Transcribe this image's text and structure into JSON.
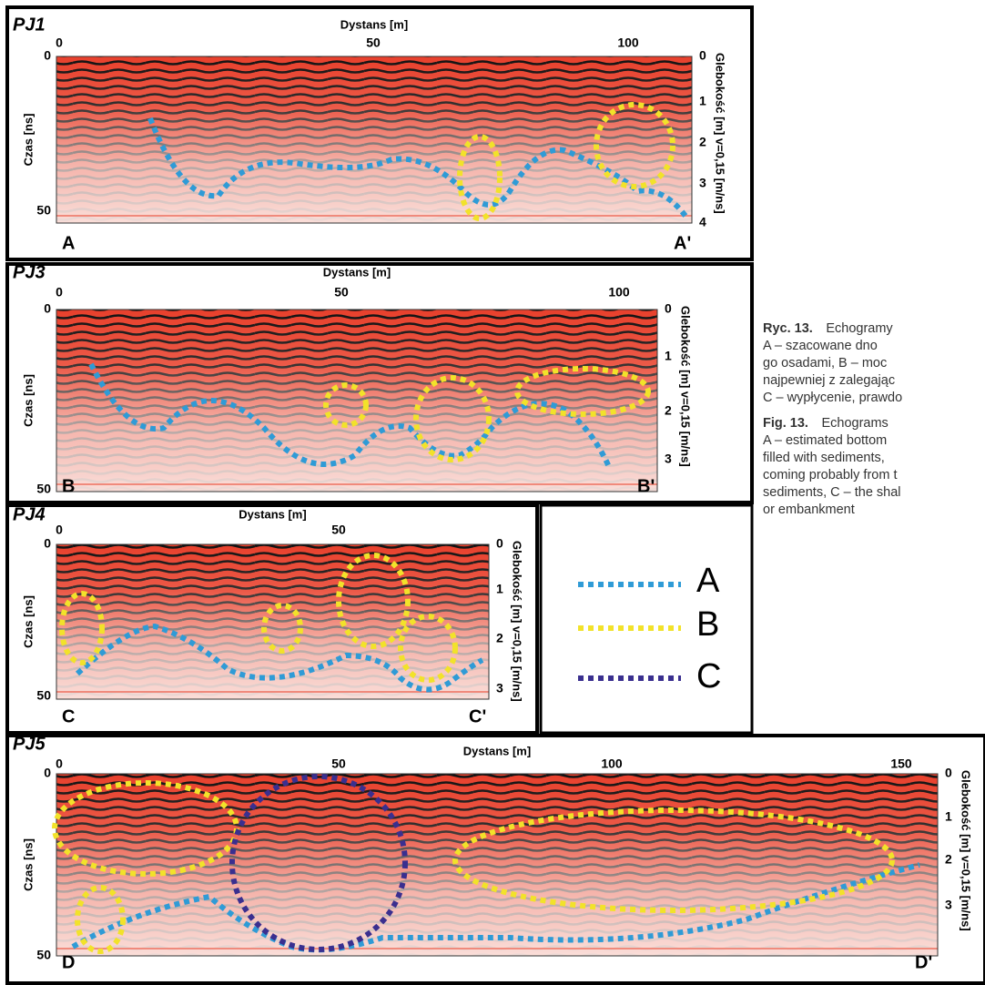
{
  "panels": [
    {
      "label": "PJ1",
      "x_axis_label": "Dystans [m]",
      "x_ticks": [
        "0",
        "50",
        "100"
      ],
      "y_axis_label": "Czas [ns]",
      "y_ticks": [
        "0",
        "50"
      ],
      "depth_axis_label": "Glebokość [m] v=0,15 [m/ns]",
      "depth_ticks": [
        "0",
        "1",
        "2",
        "3",
        "4"
      ],
      "start_label": "A",
      "end_label": "A'"
    },
    {
      "label": "PJ3",
      "x_axis_label": "Dystans [m]",
      "x_ticks": [
        "0",
        "50",
        "100"
      ],
      "y_axis_label": "Czas [ns]",
      "y_ticks": [
        "0",
        "50"
      ],
      "depth_axis_label": "Glebokość [m] v=0,15 [m/ns]",
      "depth_ticks": [
        "0",
        "1",
        "2",
        "3"
      ],
      "start_label": "B",
      "end_label": "B'"
    },
    {
      "label": "PJ4",
      "x_axis_label": "Dystans [m]",
      "x_ticks": [
        "0",
        "50"
      ],
      "y_axis_label": "Czas [ns]",
      "y_ticks": [
        "0",
        "50"
      ],
      "depth_axis_label": "Glebokość [m] v=0,15 [m/ns]",
      "depth_ticks": [
        "0",
        "1",
        "2",
        "3"
      ],
      "start_label": "C",
      "end_label": "C'"
    },
    {
      "label": "PJ5",
      "x_axis_label": "Dystans [m]",
      "x_ticks": [
        "0",
        "50",
        "100",
        "150"
      ],
      "y_axis_label": "Czas [ns]",
      "y_ticks": [
        "0",
        "50"
      ],
      "depth_axis_label": "Glebokość [m] v=0,15 [m/ns]",
      "depth_ticks": [
        "0",
        "1",
        "2",
        "3"
      ],
      "start_label": "D",
      "end_label": "D'"
    }
  ],
  "legend": [
    "A",
    "B",
    "C"
  ],
  "caption": {
    "pl": {
      "label": "Ryc. 13.",
      "lines": [
        "Echogramy",
        "A – szacowane dno",
        "go osadami, B – moc",
        "najpewniej z zalegając",
        "C – wypłycenie, prawdo"
      ]
    },
    "en": {
      "label": "Fig. 13.",
      "lines": [
        "Echograms",
        "A – estimated bottom",
        "filled with sediments,",
        "coming probably from t",
        "sediments, C – the shal",
        "or embankment"
      ]
    }
  }
}
